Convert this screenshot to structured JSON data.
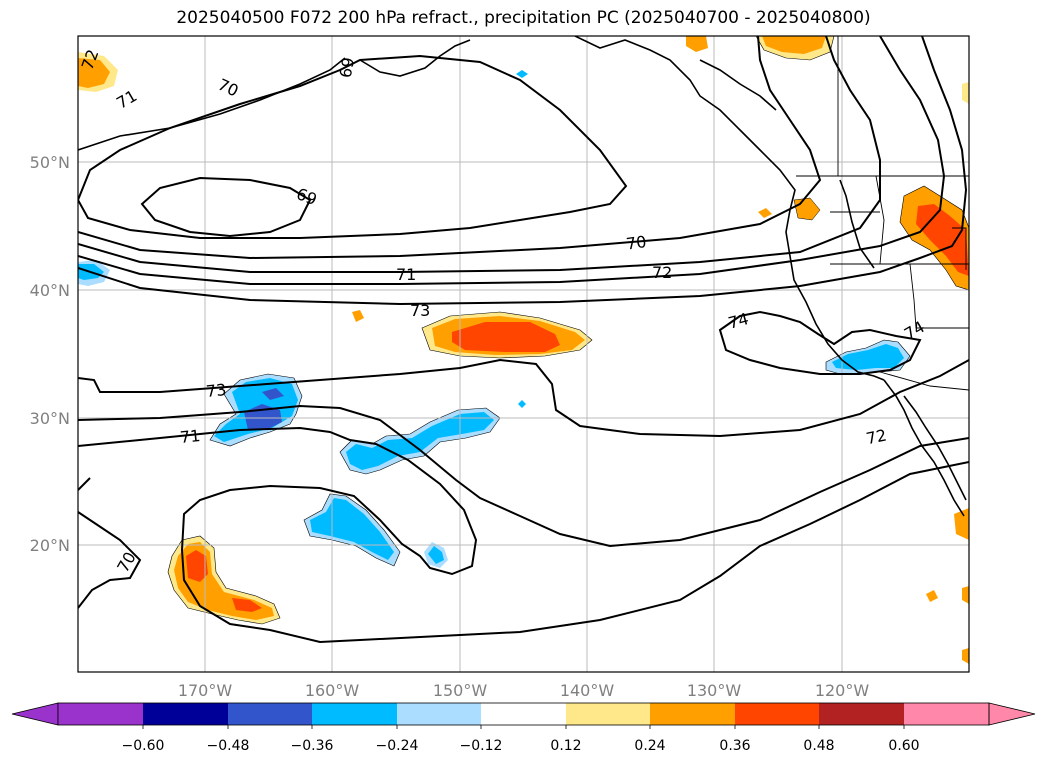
{
  "title": "2025040500 F072 200 hPa refract., precipitation PC (2025040700 - 2025040800)",
  "map": {
    "lat_labels": [
      "50°N",
      "40°N",
      "30°N",
      "20°N"
    ],
    "lon_labels": [
      "170°W",
      "160°W",
      "150°W",
      "140°W",
      "130°W",
      "120°W"
    ],
    "contour_labels": [
      "72",
      "71",
      "70",
      "69",
      "69",
      "70",
      "71",
      "72",
      "73",
      "73",
      "71",
      "70",
      "74",
      "74",
      "72"
    ]
  },
  "colorbar": {
    "ticks": [
      "−0.60",
      "−0.48",
      "−0.36",
      "−0.24",
      "−0.12",
      "0.12",
      "0.24",
      "0.36",
      "0.48",
      "0.60"
    ],
    "colors": [
      "#9933cc",
      "#000099",
      "#3355cc",
      "#00bbff",
      "#aaddff",
      "#ffffff",
      "#ffe88a",
      "#ffa000",
      "#ff4500",
      "#b22222",
      "#ff88aa"
    ]
  }
}
